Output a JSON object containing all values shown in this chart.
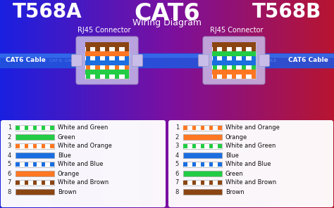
{
  "title_main": "CAT6",
  "title_sub": "Wiring Diagram",
  "left_standard": "T568A",
  "right_standard": "T568B",
  "left_connector_label": "RJ45 Connector",
  "right_connector_label": "RJ45 Connector",
  "left_cable_label": "CAT6 Cable",
  "right_cable_label": "CAT6 Cable",
  "t568a_wires": [
    {
      "label": "White and Green",
      "color": "#22cc44",
      "stripe": true,
      "base": "#ffffff"
    },
    {
      "label": "Green",
      "color": "#22cc44",
      "stripe": false,
      "base": "#22cc44"
    },
    {
      "label": "White and Orange",
      "color": "#ff7722",
      "stripe": true,
      "base": "#ffffff"
    },
    {
      "label": "Blue",
      "color": "#1a6ee0",
      "stripe": false,
      "base": "#1a6ee0"
    },
    {
      "label": "White and Blue",
      "color": "#1a6ee0",
      "stripe": true,
      "base": "#ffffff"
    },
    {
      "label": "Orange",
      "color": "#ff7722",
      "stripe": false,
      "base": "#ff7722"
    },
    {
      "label": "White and Brown",
      "color": "#8B4513",
      "stripe": true,
      "base": "#ffffff"
    },
    {
      "label": "Brown",
      "color": "#8B4513",
      "stripe": false,
      "base": "#8B4513"
    }
  ],
  "t568b_wires": [
    {
      "label": "White and Orange",
      "color": "#ff7722",
      "stripe": true,
      "base": "#ffffff"
    },
    {
      "label": "Orange",
      "color": "#ff7722",
      "stripe": false,
      "base": "#ff7722"
    },
    {
      "label": "White and Green",
      "color": "#22cc44",
      "stripe": true,
      "base": "#ffffff"
    },
    {
      "label": "Blue",
      "color": "#1a6ee0",
      "stripe": false,
      "base": "#1a6ee0"
    },
    {
      "label": "White and Blue",
      "color": "#1a6ee0",
      "stripe": true,
      "base": "#ffffff"
    },
    {
      "label": "Green",
      "color": "#22cc44",
      "stripe": false,
      "base": "#22cc44"
    },
    {
      "label": "White and Brown",
      "color": "#8B4513",
      "stripe": true,
      "base": "#ffffff"
    },
    {
      "label": "Brown",
      "color": "#8B4513",
      "stripe": false,
      "base": "#8B4513"
    }
  ]
}
